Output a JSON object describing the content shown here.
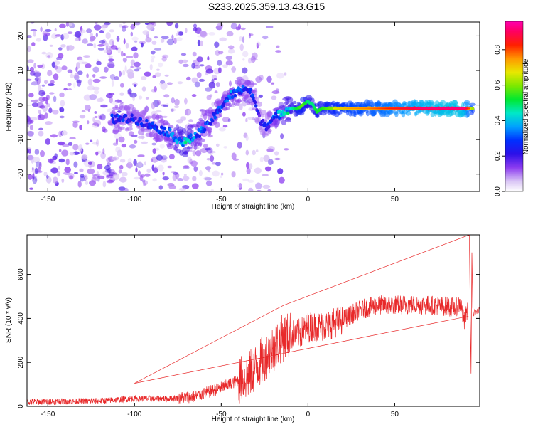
{
  "title": "S233.2025.359.13.43.G15",
  "chart_data": [
    {
      "type": "heatmap",
      "name": "spectrogram",
      "xlabel": "Height of straight line (km)",
      "ylabel": "Frequency (Hz)",
      "xlim": [
        -162,
        99
      ],
      "ylim": [
        -25,
        24
      ],
      "xticks": [
        -150,
        -100,
        -50,
        0,
        50
      ],
      "yticks": [
        -20,
        -10,
        0,
        10,
        20
      ],
      "ridge": {
        "name": "dominant frequency ridge",
        "x": [
          -113,
          -100,
          -90,
          -80,
          -72,
          -65,
          -58,
          -52,
          -48,
          -44,
          -40,
          -36,
          -32,
          -28,
          -24,
          -20,
          -15,
          -10,
          -6,
          -3,
          0,
          3,
          5,
          8,
          12,
          18,
          25,
          35,
          50,
          65,
          80,
          90,
          95
        ],
        "y": [
          -4,
          -4,
          -6,
          -8,
          -11,
          -9,
          -6,
          -2,
          1,
          3,
          4,
          5,
          3,
          -4,
          -6,
          -4,
          -2,
          -1,
          -1,
          0,
          1,
          0,
          -2,
          -1,
          -1,
          -1,
          -1,
          -1,
          -1,
          -1,
          -1,
          -1,
          -1
        ],
        "amplitude": [
          0.3,
          0.25,
          0.28,
          0.32,
          0.45,
          0.35,
          0.3,
          0.3,
          0.3,
          0.35,
          0.3,
          0.3,
          0.3,
          0.2,
          0.25,
          0.3,
          0.4,
          0.45,
          0.55,
          0.6,
          0.5,
          0.5,
          0.55,
          0.55,
          0.6,
          0.65,
          0.7,
          0.72,
          0.8,
          0.88,
          0.92,
          0.92,
          0.65
        ]
      }
    },
    {
      "type": "colorbar",
      "name": "amplitude colorbar",
      "label": "Normalized spectral amplitude",
      "range": [
        0.0,
        0.96
      ],
      "ticks": [
        "0.0",
        "0.2",
        "0.4",
        "0.6",
        "0.8"
      ]
    },
    {
      "type": "line",
      "name": "snr",
      "xlabel": "Height of straight line (km)",
      "ylabel": "SNR (10 * v/v)",
      "xlim": [
        -162,
        99
      ],
      "ylim": [
        0,
        780
      ],
      "xticks": [
        -150,
        -100,
        -50,
        0,
        50
      ],
      "yticks": [
        0,
        200,
        400,
        600
      ],
      "color": "#e8292a",
      "trend": {
        "x": [
          -162,
          -120,
          -100,
          -80,
          -65,
          -50,
          -35,
          -25,
          -15,
          -10,
          -5,
          0,
          10,
          20,
          30,
          40,
          50,
          60,
          70,
          80,
          85,
          88,
          90,
          92,
          95,
          99
        ],
        "y": [
          20,
          25,
          35,
          35,
          45,
          85,
          135,
          220,
          310,
          325,
          330,
          360,
          365,
          395,
          440,
          460,
          462,
          462,
          460,
          455,
          450,
          470,
          380,
          440,
          450,
          450
        ]
      },
      "spikes": {
        "x": [
          -100,
          -14,
          93,
          94,
          94.5
        ],
        "y": [
          105,
          460,
          780,
          150,
          700
        ]
      }
    }
  ]
}
